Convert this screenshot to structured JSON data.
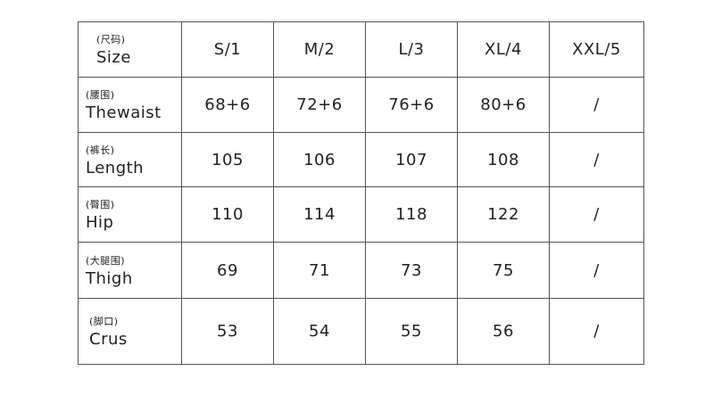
{
  "header": {
    "cn": "(尺码)",
    "en": "Size",
    "sizes": [
      "S/1",
      "M/2",
      "L/3",
      "XL/4",
      "XXL/5"
    ]
  },
  "rows": [
    {
      "cn": "(腰围)",
      "en": "Thewaist",
      "values": [
        "68+6",
        "72+6",
        "76+6",
        "80+6",
        "/"
      ]
    },
    {
      "cn": "(裤长)",
      "en": "Length",
      "values": [
        "105",
        "106",
        "107",
        "108",
        "/"
      ]
    },
    {
      "cn": "(臀围)",
      "en": "Hip",
      "values": [
        "110",
        "114",
        "118",
        "122",
        "/"
      ]
    },
    {
      "cn": "(大腿围)",
      "en": "Thigh",
      "values": [
        "69",
        "71",
        "73",
        "75",
        "/"
      ]
    },
    {
      "cn": "(脚口)",
      "en": "Crus",
      "values": [
        "53",
        "54",
        "55",
        "56",
        "/"
      ]
    }
  ]
}
